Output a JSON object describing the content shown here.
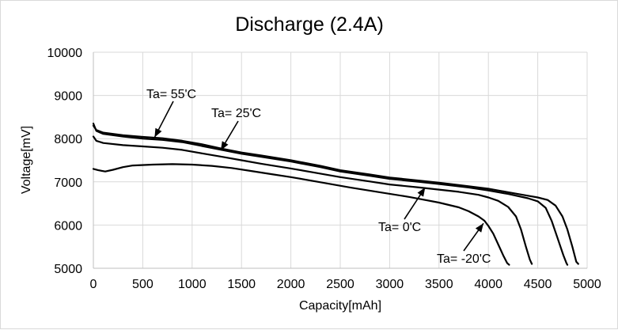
{
  "chart_data": {
    "type": "line",
    "title": "Discharge (2.4A)",
    "xlabel": "Capacity[mAh]",
    "ylabel": "Voltage[mV]",
    "xlim": [
      0,
      5000
    ],
    "ylim": [
      5000,
      10000
    ],
    "x_ticks": [
      "0",
      "500",
      "1000",
      "1500",
      "2000",
      "2500",
      "3000",
      "3500",
      "4000",
      "4500",
      "5000"
    ],
    "y_ticks": [
      "5000",
      "6000",
      "7000",
      "8000",
      "9000",
      "10000"
    ],
    "grid": "vertical and horizontal",
    "series": [
      {
        "name": "Ta= 55'C",
        "points": [
          [
            0,
            8300
          ],
          [
            30,
            8200
          ],
          [
            100,
            8140
          ],
          [
            300,
            8080
          ],
          [
            500,
            8040
          ],
          [
            700,
            8010
          ],
          [
            900,
            7950
          ],
          [
            1100,
            7870
          ],
          [
            1300,
            7770
          ],
          [
            1500,
            7680
          ],
          [
            1700,
            7610
          ],
          [
            2000,
            7500
          ],
          [
            2300,
            7370
          ],
          [
            2500,
            7270
          ],
          [
            2800,
            7170
          ],
          [
            3000,
            7100
          ],
          [
            3300,
            7030
          ],
          [
            3500,
            6980
          ],
          [
            3800,
            6900
          ],
          [
            4000,
            6840
          ],
          [
            4200,
            6760
          ],
          [
            4400,
            6680
          ],
          [
            4500,
            6640
          ],
          [
            4600,
            6580
          ],
          [
            4680,
            6450
          ],
          [
            4750,
            6200
          ],
          [
            4800,
            5900
          ],
          [
            4850,
            5500
          ],
          [
            4890,
            5150
          ],
          [
            4910,
            5100
          ]
        ]
      },
      {
        "name": "Ta= 25'C",
        "points": [
          [
            0,
            8350
          ],
          [
            30,
            8180
          ],
          [
            100,
            8110
          ],
          [
            300,
            8050
          ],
          [
            500,
            8000
          ],
          [
            700,
            7970
          ],
          [
            900,
            7920
          ],
          [
            1100,
            7830
          ],
          [
            1300,
            7740
          ],
          [
            1500,
            7650
          ],
          [
            1700,
            7580
          ],
          [
            2000,
            7470
          ],
          [
            2300,
            7340
          ],
          [
            2500,
            7240
          ],
          [
            2800,
            7140
          ],
          [
            3000,
            7070
          ],
          [
            3300,
            7000
          ],
          [
            3500,
            6950
          ],
          [
            3800,
            6870
          ],
          [
            4000,
            6800
          ],
          [
            4200,
            6720
          ],
          [
            4400,
            6620
          ],
          [
            4500,
            6550
          ],
          [
            4580,
            6400
          ],
          [
            4640,
            6100
          ],
          [
            4700,
            5700
          ],
          [
            4760,
            5300
          ],
          [
            4790,
            5120
          ],
          [
            4800,
            5080
          ]
        ]
      },
      {
        "name": "Ta= 0'C",
        "points": [
          [
            0,
            8050
          ],
          [
            30,
            7950
          ],
          [
            100,
            7900
          ],
          [
            300,
            7850
          ],
          [
            500,
            7820
          ],
          [
            700,
            7790
          ],
          [
            900,
            7740
          ],
          [
            1100,
            7660
          ],
          [
            1300,
            7580
          ],
          [
            1500,
            7500
          ],
          [
            1700,
            7420
          ],
          [
            2000,
            7310
          ],
          [
            2300,
            7190
          ],
          [
            2500,
            7110
          ],
          [
            2800,
            7010
          ],
          [
            3000,
            6940
          ],
          [
            3300,
            6870
          ],
          [
            3500,
            6820
          ],
          [
            3700,
            6770
          ],
          [
            3900,
            6700
          ],
          [
            4000,
            6640
          ],
          [
            4100,
            6560
          ],
          [
            4200,
            6420
          ],
          [
            4280,
            6200
          ],
          [
            4330,
            5900
          ],
          [
            4380,
            5500
          ],
          [
            4420,
            5200
          ],
          [
            4440,
            5100
          ]
        ]
      },
      {
        "name": "Ta= -20'C",
        "points": [
          [
            0,
            7300
          ],
          [
            50,
            7270
          ],
          [
            120,
            7240
          ],
          [
            200,
            7280
          ],
          [
            300,
            7340
          ],
          [
            400,
            7380
          ],
          [
            600,
            7400
          ],
          [
            800,
            7410
          ],
          [
            1000,
            7400
          ],
          [
            1200,
            7370
          ],
          [
            1400,
            7320
          ],
          [
            1600,
            7250
          ],
          [
            1800,
            7180
          ],
          [
            2000,
            7110
          ],
          [
            2300,
            6990
          ],
          [
            2600,
            6870
          ],
          [
            2900,
            6760
          ],
          [
            3200,
            6650
          ],
          [
            3500,
            6520
          ],
          [
            3700,
            6410
          ],
          [
            3800,
            6320
          ],
          [
            3900,
            6200
          ],
          [
            3960,
            6100
          ],
          [
            4000,
            5980
          ],
          [
            4050,
            5800
          ],
          [
            4100,
            5550
          ],
          [
            4150,
            5300
          ],
          [
            4190,
            5120
          ],
          [
            4210,
            5080
          ]
        ]
      }
    ],
    "annotations": [
      {
        "text": "Ta= 55'C",
        "arrow_to": [
          620,
          8030
        ]
      },
      {
        "text": "Ta= 25'C",
        "arrow_to": [
          1290,
          7730
        ]
      },
      {
        "text": "Ta= 0'C",
        "arrow_to": [
          3360,
          6870
        ]
      },
      {
        "text": "Ta= -20'C",
        "arrow_to": [
          3950,
          6040
        ]
      }
    ]
  }
}
